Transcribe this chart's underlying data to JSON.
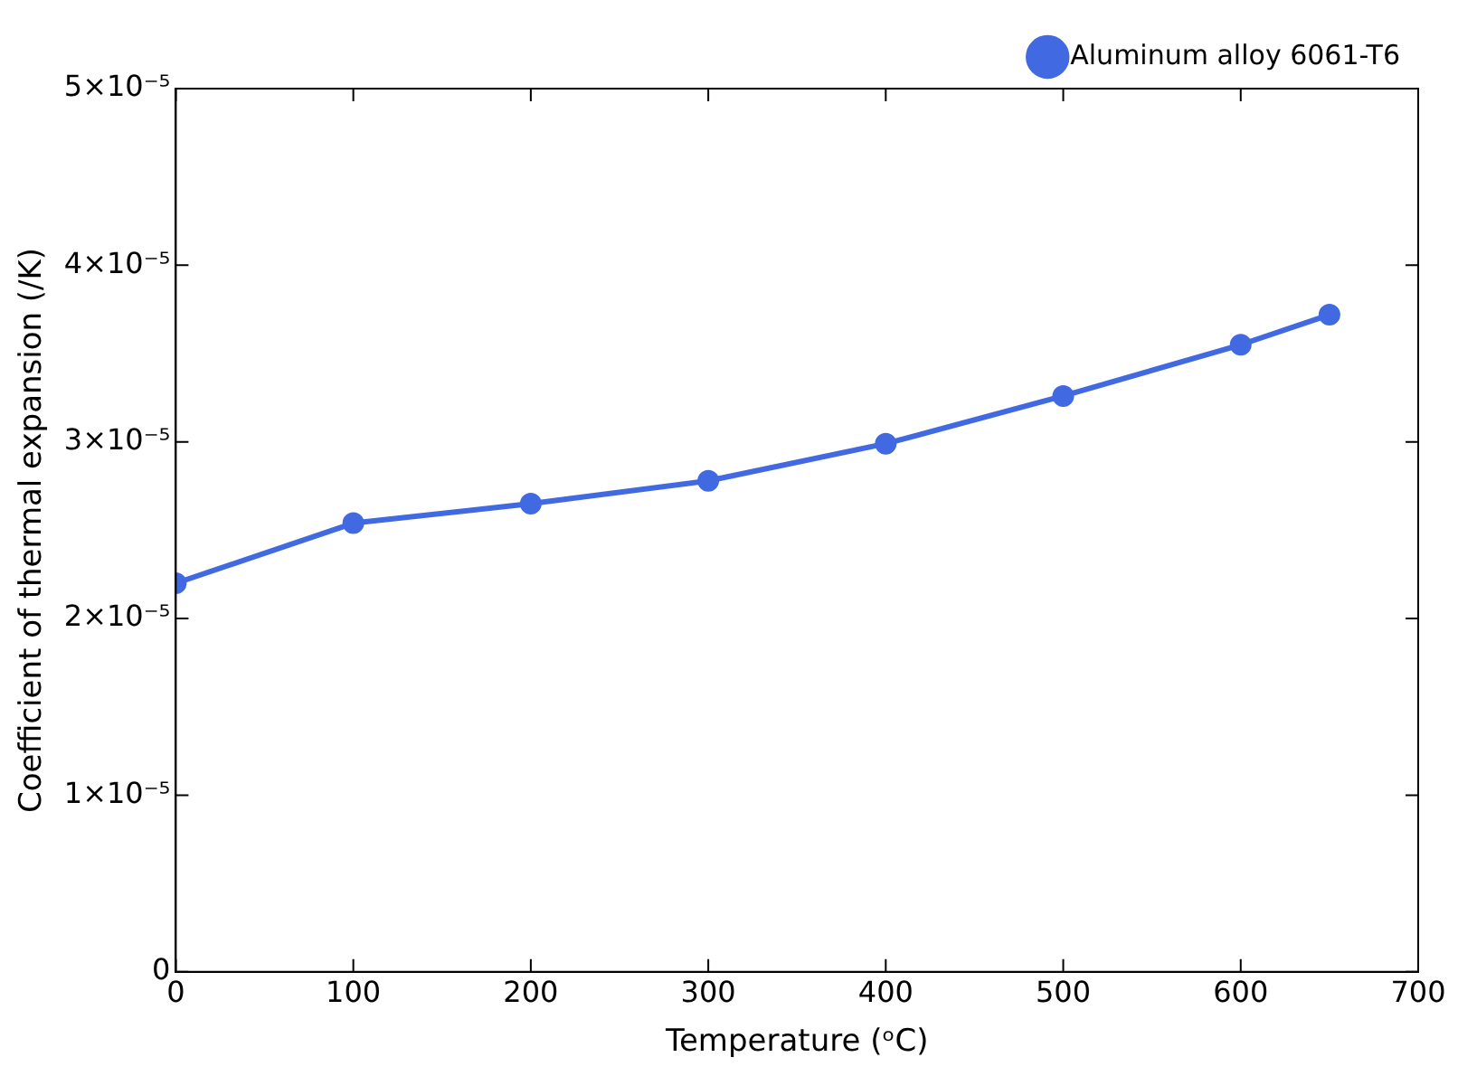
{
  "chart_data": {
    "type": "line",
    "xlabel": "Temperature (ᵒC)",
    "ylabel": "Coefficient of thermal expansion (/K)",
    "x": [
      0,
      100,
      200,
      300,
      400,
      500,
      600,
      650
    ],
    "series": [
      {
        "name": "Aluminum alloy 6061-T6",
        "color": "#4169e1",
        "values": [
          2.2e-05,
          2.54e-05,
          2.65e-05,
          2.78e-05,
          2.99e-05,
          3.26e-05,
          3.55e-05,
          3.72e-05
        ]
      }
    ],
    "xlim": [
      0,
      700
    ],
    "xticks": [
      0,
      100,
      200,
      300,
      400,
      500,
      600,
      700
    ],
    "ylim": [
      0,
      5e-05
    ],
    "yticks": [
      0,
      {
        "value": 1e-05,
        "label": "1×10⁻⁵"
      },
      {
        "value": 2e-05,
        "label": "2×10⁻⁵"
      },
      {
        "value": 3e-05,
        "label": "3×10⁻⁵"
      },
      {
        "value": 4e-05,
        "label": "4×10⁻⁵"
      },
      {
        "value": 5e-05,
        "label": "5×10⁻⁵"
      }
    ],
    "grid": false,
    "legend": "top right",
    "marker": "circle",
    "line_style": "solid"
  }
}
